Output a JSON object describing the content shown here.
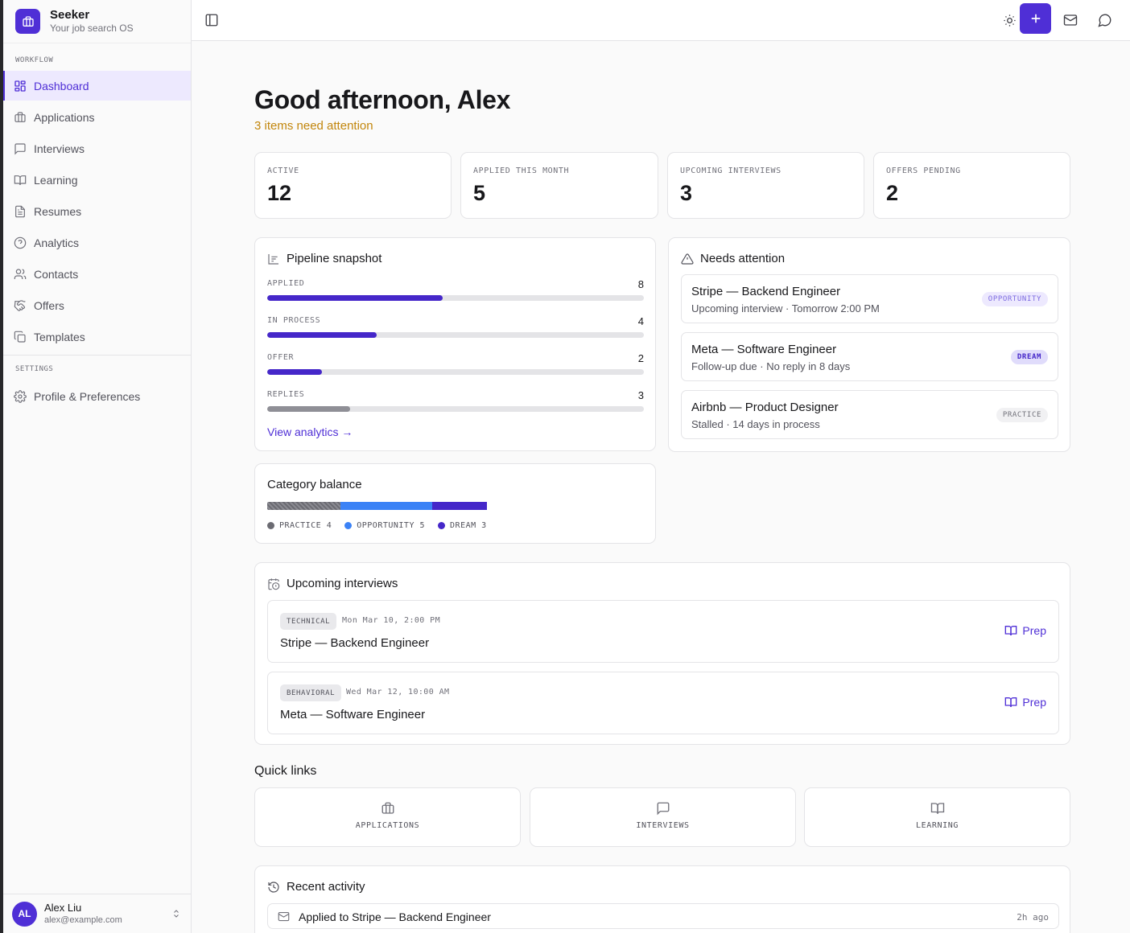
{
  "brand": {
    "name": "Seeker",
    "subtitle": "Your job search OS"
  },
  "sidebar": {
    "workflow_label": "WORKFLOW",
    "settings_label": "SETTINGS",
    "items": [
      {
        "label": "Dashboard",
        "icon": "dashboard-icon"
      },
      {
        "label": "Applications",
        "icon": "briefcase-icon"
      },
      {
        "label": "Interviews",
        "icon": "message-square-icon"
      },
      {
        "label": "Learning",
        "icon": "book-open-icon"
      },
      {
        "label": "Resumes",
        "icon": "file-text-icon"
      },
      {
        "label": "Analytics",
        "icon": "help-circle-icon"
      },
      {
        "label": "Contacts",
        "icon": "users-icon"
      },
      {
        "label": "Offers",
        "icon": "handshake-icon"
      },
      {
        "label": "Templates",
        "icon": "copy-icon"
      }
    ],
    "settings_items": [
      {
        "label": "Profile & Preferences",
        "icon": "gear-icon"
      }
    ],
    "user": {
      "initials": "AL",
      "name": "Alex Liu",
      "email": "alex@example.com"
    }
  },
  "colors": {
    "accent": "#4f2fd6",
    "warning": "#c2860c",
    "practice": "#6b6b72",
    "opportunity": "#3b82f6",
    "dream": "#4527c9"
  },
  "header": {
    "greeting": "Good afternoon, Alex",
    "attention": "3 items need attention"
  },
  "stats": [
    {
      "label": "ACTIVE",
      "value": "12"
    },
    {
      "label": "APPLIED THIS MONTH",
      "value": "5"
    },
    {
      "label": "UPCOMING INTERVIEWS",
      "value": "3"
    },
    {
      "label": "OFFERS PENDING",
      "value": "2"
    }
  ],
  "pipeline": {
    "title": "Pipeline snapshot",
    "rows": [
      {
        "label": "APPLIED",
        "count": "8",
        "fraction": 0.465,
        "color": "#4527c9"
      },
      {
        "label": "IN PROCESS",
        "count": "4",
        "fraction": 0.29,
        "color": "#4527c9"
      },
      {
        "label": "OFFER",
        "count": "2",
        "fraction": 0.145,
        "color": "#4527c9"
      },
      {
        "label": "REPLIES",
        "count": "3",
        "fraction": 0.22,
        "color": "#8f8f96"
      }
    ],
    "link": "View analytics →"
  },
  "category": {
    "title": "Category balance",
    "segments": [
      {
        "label": "PRACTICE",
        "count": "4",
        "value": 4,
        "color": "#6b6b72"
      },
      {
        "label": "OPPORTUNITY",
        "count": "5",
        "value": 5,
        "color": "#3b82f6"
      },
      {
        "label": "DREAM",
        "count": "3",
        "value": 3,
        "color": "#4527c9"
      }
    ]
  },
  "needs_attention": {
    "title": "Needs attention",
    "items": [
      {
        "title": "Stripe — Backend Engineer",
        "subtitle": "Upcoming interview · Tomorrow 2:00 PM",
        "badge": "OPPORTUNITY"
      },
      {
        "title": "Meta — Software Engineer",
        "subtitle": "Follow-up due · No reply in 8 days",
        "badge": "DREAM"
      },
      {
        "title": "Airbnb — Product Designer",
        "subtitle": "Stalled · 14 days in process",
        "badge": "PRACTICE"
      }
    ]
  },
  "upcoming": {
    "title": "Upcoming interviews",
    "items": [
      {
        "tag": "TECHNICAL",
        "date": "Mon Mar 10, 2:00 PM",
        "title": "Stripe — Backend Engineer",
        "action": "Prep"
      },
      {
        "tag": "BEHAVIORAL",
        "date": "Wed Mar 12, 10:00 AM",
        "title": "Meta — Software Engineer",
        "action": "Prep"
      }
    ]
  },
  "quick_links": {
    "title": "Quick links",
    "items": [
      {
        "label": "APPLICATIONS",
        "icon": "briefcase-icon"
      },
      {
        "label": "INTERVIEWS",
        "icon": "message-square-icon"
      },
      {
        "label": "LEARNING",
        "icon": "book-open-icon"
      }
    ]
  },
  "recent_activity": {
    "title": "Recent activity",
    "items": [
      {
        "text": "Applied to Stripe — Backend Engineer",
        "time": "2h ago",
        "icon": "mail-icon"
      }
    ]
  }
}
